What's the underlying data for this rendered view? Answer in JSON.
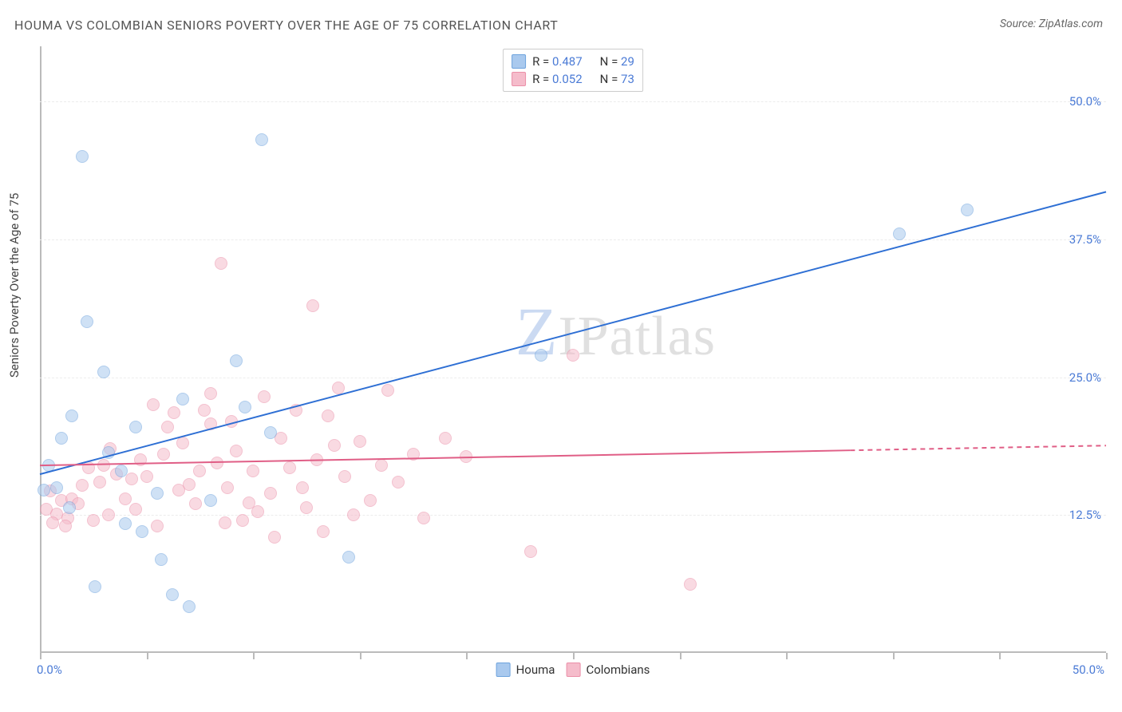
{
  "title": "HOUMA VS COLOMBIAN SENIORS POVERTY OVER THE AGE OF 75 CORRELATION CHART",
  "source": "Source: ZipAtlas.com",
  "ylabel": "Seniors Poverty Over the Age of 75",
  "watermark_z": "Z",
  "watermark_rest": "IPatlas",
  "chart": {
    "type": "scatter",
    "xlim": [
      0,
      50
    ],
    "ylim": [
      0,
      55
    ],
    "x_ticks": [
      0,
      5,
      10,
      15,
      20,
      25,
      30,
      35,
      40,
      45,
      50
    ],
    "x_tick_labels": {
      "0": "0.0%",
      "50": "50.0%"
    },
    "y_ticks": [
      12.5,
      25.0,
      37.5,
      50.0
    ],
    "y_tick_labels": [
      "12.5%",
      "25.0%",
      "37.5%",
      "50.0%"
    ],
    "grid_color": "#ececec",
    "axis_color": "#bbbbbb",
    "background": "#ffffff",
    "tick_label_color": "#4b7bd6",
    "marker_radius": 8,
    "marker_opacity": 0.55,
    "line_width": 2,
    "series": [
      {
        "name": "Houma",
        "color_fill": "#a9c9ee",
        "color_stroke": "#6ea3dd",
        "line_color": "#2e6fd4",
        "r": "0.487",
        "n": "29",
        "trend": {
          "x1": 0,
          "y1": 16.2,
          "x2": 50,
          "y2": 41.8,
          "dash_from_x": 50
        },
        "data": [
          [
            0.4,
            17.0
          ],
          [
            0.2,
            14.8
          ],
          [
            1.0,
            19.5
          ],
          [
            2.0,
            45.0
          ],
          [
            3.0,
            25.5
          ],
          [
            4.5,
            20.5
          ],
          [
            1.5,
            21.5
          ],
          [
            1.4,
            13.2
          ],
          [
            2.6,
            6.0
          ],
          [
            4.0,
            11.7
          ],
          [
            5.7,
            8.5
          ],
          [
            3.8,
            16.5
          ],
          [
            2.2,
            30.0
          ],
          [
            6.7,
            23.0
          ],
          [
            7.0,
            4.2
          ],
          [
            10.4,
            46.5
          ],
          [
            9.2,
            26.5
          ],
          [
            9.6,
            22.3
          ],
          [
            10.8,
            20.0
          ],
          [
            8.0,
            13.8
          ],
          [
            14.5,
            8.7
          ],
          [
            23.5,
            27.0
          ],
          [
            40.3,
            38.0
          ],
          [
            43.5,
            40.2
          ],
          [
            4.8,
            11.0
          ],
          [
            3.2,
            18.2
          ],
          [
            0.8,
            15.0
          ],
          [
            5.5,
            14.5
          ],
          [
            6.2,
            5.3
          ]
        ]
      },
      {
        "name": "Colombians",
        "color_fill": "#f5bccb",
        "color_stroke": "#eb8fa8",
        "line_color": "#e05e86",
        "r": "0.052",
        "n": "73",
        "trend": {
          "x1": 0,
          "y1": 17.0,
          "x2": 50,
          "y2": 18.8,
          "dash_from_x": 38
        },
        "data": [
          [
            0.3,
            13.0
          ],
          [
            0.5,
            14.7
          ],
          [
            0.8,
            12.6
          ],
          [
            1.0,
            13.8
          ],
          [
            1.3,
            12.2
          ],
          [
            1.5,
            14.0
          ],
          [
            1.8,
            13.5
          ],
          [
            2.0,
            15.2
          ],
          [
            2.3,
            16.8
          ],
          [
            2.8,
            15.5
          ],
          [
            3.0,
            17.0
          ],
          [
            3.3,
            18.5
          ],
          [
            3.2,
            12.5
          ],
          [
            3.6,
            16.2
          ],
          [
            4.0,
            14.0
          ],
          [
            4.3,
            15.8
          ],
          [
            4.7,
            17.5
          ],
          [
            5.0,
            16.0
          ],
          [
            5.3,
            22.5
          ],
          [
            5.8,
            18.0
          ],
          [
            6.0,
            20.5
          ],
          [
            6.3,
            21.8
          ],
          [
            6.7,
            19.0
          ],
          [
            7.0,
            15.3
          ],
          [
            7.3,
            13.5
          ],
          [
            7.7,
            22.0
          ],
          [
            8.0,
            23.5
          ],
          [
            8.0,
            20.8
          ],
          [
            8.3,
            17.2
          ],
          [
            8.5,
            35.3
          ],
          [
            8.7,
            11.8
          ],
          [
            9.0,
            21.0
          ],
          [
            9.2,
            18.3
          ],
          [
            9.5,
            12.0
          ],
          [
            9.8,
            13.6
          ],
          [
            10.0,
            16.5
          ],
          [
            10.5,
            23.2
          ],
          [
            10.8,
            14.5
          ],
          [
            11.0,
            10.5
          ],
          [
            11.3,
            19.5
          ],
          [
            11.7,
            16.8
          ],
          [
            12.0,
            22.0
          ],
          [
            12.3,
            15.0
          ],
          [
            12.5,
            13.2
          ],
          [
            12.8,
            31.5
          ],
          [
            13.0,
            17.5
          ],
          [
            13.3,
            11.0
          ],
          [
            13.5,
            21.5
          ],
          [
            13.8,
            18.8
          ],
          [
            14.0,
            24.0
          ],
          [
            14.3,
            16.0
          ],
          [
            14.7,
            12.5
          ],
          [
            15.0,
            19.2
          ],
          [
            15.5,
            13.8
          ],
          [
            16.0,
            17.0
          ],
          [
            16.3,
            23.8
          ],
          [
            16.8,
            15.5
          ],
          [
            17.5,
            18.0
          ],
          [
            18.0,
            12.2
          ],
          [
            19.0,
            19.5
          ],
          [
            20.0,
            17.8
          ],
          [
            23.0,
            9.2
          ],
          [
            25.0,
            27.0
          ],
          [
            30.5,
            6.2
          ],
          [
            6.5,
            14.8
          ],
          [
            4.5,
            13.0
          ],
          [
            2.5,
            12.0
          ],
          [
            1.2,
            11.5
          ],
          [
            0.6,
            11.8
          ],
          [
            5.5,
            11.5
          ],
          [
            7.5,
            16.5
          ],
          [
            8.8,
            15.0
          ],
          [
            10.2,
            12.8
          ]
        ]
      }
    ]
  },
  "legend_bottom": [
    {
      "swatch_fill": "#a9c9ee",
      "swatch_stroke": "#6ea3dd",
      "label": "Houma"
    },
    {
      "swatch_fill": "#f5bccb",
      "swatch_stroke": "#eb8fa8",
      "label": "Colombians"
    }
  ]
}
